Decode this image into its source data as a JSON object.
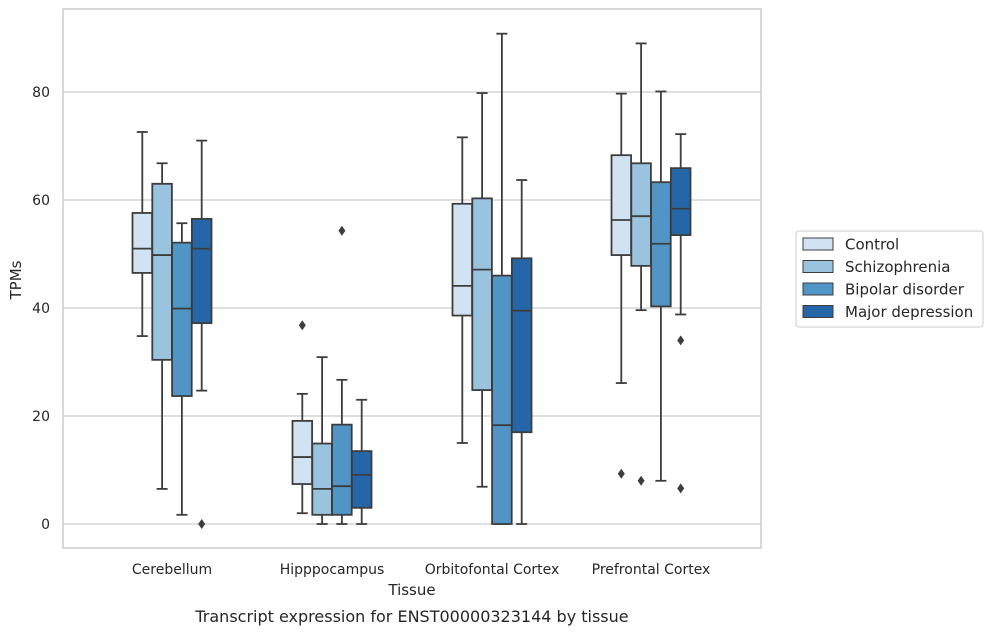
{
  "chart_data": {
    "type": "boxplot",
    "title": "",
    "caption": "Transcript expression for ENST00000323144 by tissue",
    "xlabel": "Tissue",
    "ylabel": "TPMs",
    "ylim": [
      -4.5,
      95
    ],
    "yticks": [
      0,
      20,
      40,
      60,
      80
    ],
    "grid": "horizontal",
    "legend_position": "right, outside plot area",
    "categories": [
      "Cerebellum",
      "Hipppocampus",
      "Orbitofontal Cortex",
      "Prefrontal Cortex"
    ],
    "series": [
      {
        "name": "Control",
        "color": "#d1e2f2",
        "boxes": [
          {
            "whisker_low": 34.8,
            "q1": 46.5,
            "median": 51.0,
            "q3": 57.6,
            "whisker_high": 72.6,
            "outliers": []
          },
          {
            "whisker_low": 2.0,
            "q1": 7.4,
            "median": 12.4,
            "q3": 19.1,
            "whisker_high": 24.1,
            "outliers": [
              36.8
            ]
          },
          {
            "whisker_low": 15.0,
            "q1": 38.6,
            "median": 44.1,
            "q3": 59.3,
            "whisker_high": 71.6,
            "outliers": []
          },
          {
            "whisker_low": 26.1,
            "q1": 49.8,
            "median": 56.3,
            "q3": 68.3,
            "whisker_high": 79.7,
            "outliers": [
              9.3
            ]
          }
        ]
      },
      {
        "name": "Schizophrenia",
        "color": "#9ac3df",
        "boxes": [
          {
            "whisker_low": 6.5,
            "q1": 30.4,
            "median": 49.8,
            "q3": 63.0,
            "whisker_high": 66.8,
            "outliers": []
          },
          {
            "whisker_low": 0.0,
            "q1": 1.7,
            "median": 6.5,
            "q3": 14.9,
            "whisker_high": 30.9,
            "outliers": []
          },
          {
            "whisker_low": 6.9,
            "q1": 24.8,
            "median": 47.1,
            "q3": 60.3,
            "whisker_high": 79.8,
            "outliers": []
          },
          {
            "whisker_low": 39.6,
            "q1": 47.8,
            "median": 57.0,
            "q3": 66.8,
            "whisker_high": 89.0,
            "outliers": [
              8.0
            ]
          }
        ]
      },
      {
        "name": "Bipolar disorder",
        "color": "#5195c6",
        "boxes": [
          {
            "whisker_low": 1.7,
            "q1": 23.7,
            "median": 39.9,
            "q3": 52.1,
            "whisker_high": 55.7,
            "outliers": []
          },
          {
            "whisker_low": 0.0,
            "q1": 1.7,
            "median": 7.0,
            "q3": 18.4,
            "whisker_high": 26.7,
            "outliers": [
              54.3
            ]
          },
          {
            "whisker_low": 0.0,
            "q1": 0.0,
            "median": 18.3,
            "q3": 46.0,
            "whisker_high": 90.8,
            "outliers": []
          },
          {
            "whisker_low": 8.0,
            "q1": 40.3,
            "median": 51.9,
            "q3": 63.3,
            "whisker_high": 80.1,
            "outliers": []
          }
        ]
      },
      {
        "name": "Major depression",
        "color": "#2466a8",
        "boxes": [
          {
            "whisker_low": 24.7,
            "q1": 37.2,
            "median": 51.0,
            "q3": 56.5,
            "whisker_high": 71.0,
            "outliers": [
              0.0
            ]
          },
          {
            "whisker_low": 0.0,
            "q1": 3.0,
            "median": 9.1,
            "q3": 13.5,
            "whisker_high": 23.0,
            "outliers": []
          },
          {
            "whisker_low": 0.0,
            "q1": 17.0,
            "median": 39.5,
            "q3": 49.2,
            "whisker_high": 63.7,
            "outliers": []
          },
          {
            "whisker_low": 38.8,
            "q1": 53.5,
            "median": 58.4,
            "q3": 65.9,
            "whisker_high": 72.2,
            "outliers": [
              34.0,
              6.6
            ]
          }
        ]
      }
    ]
  }
}
